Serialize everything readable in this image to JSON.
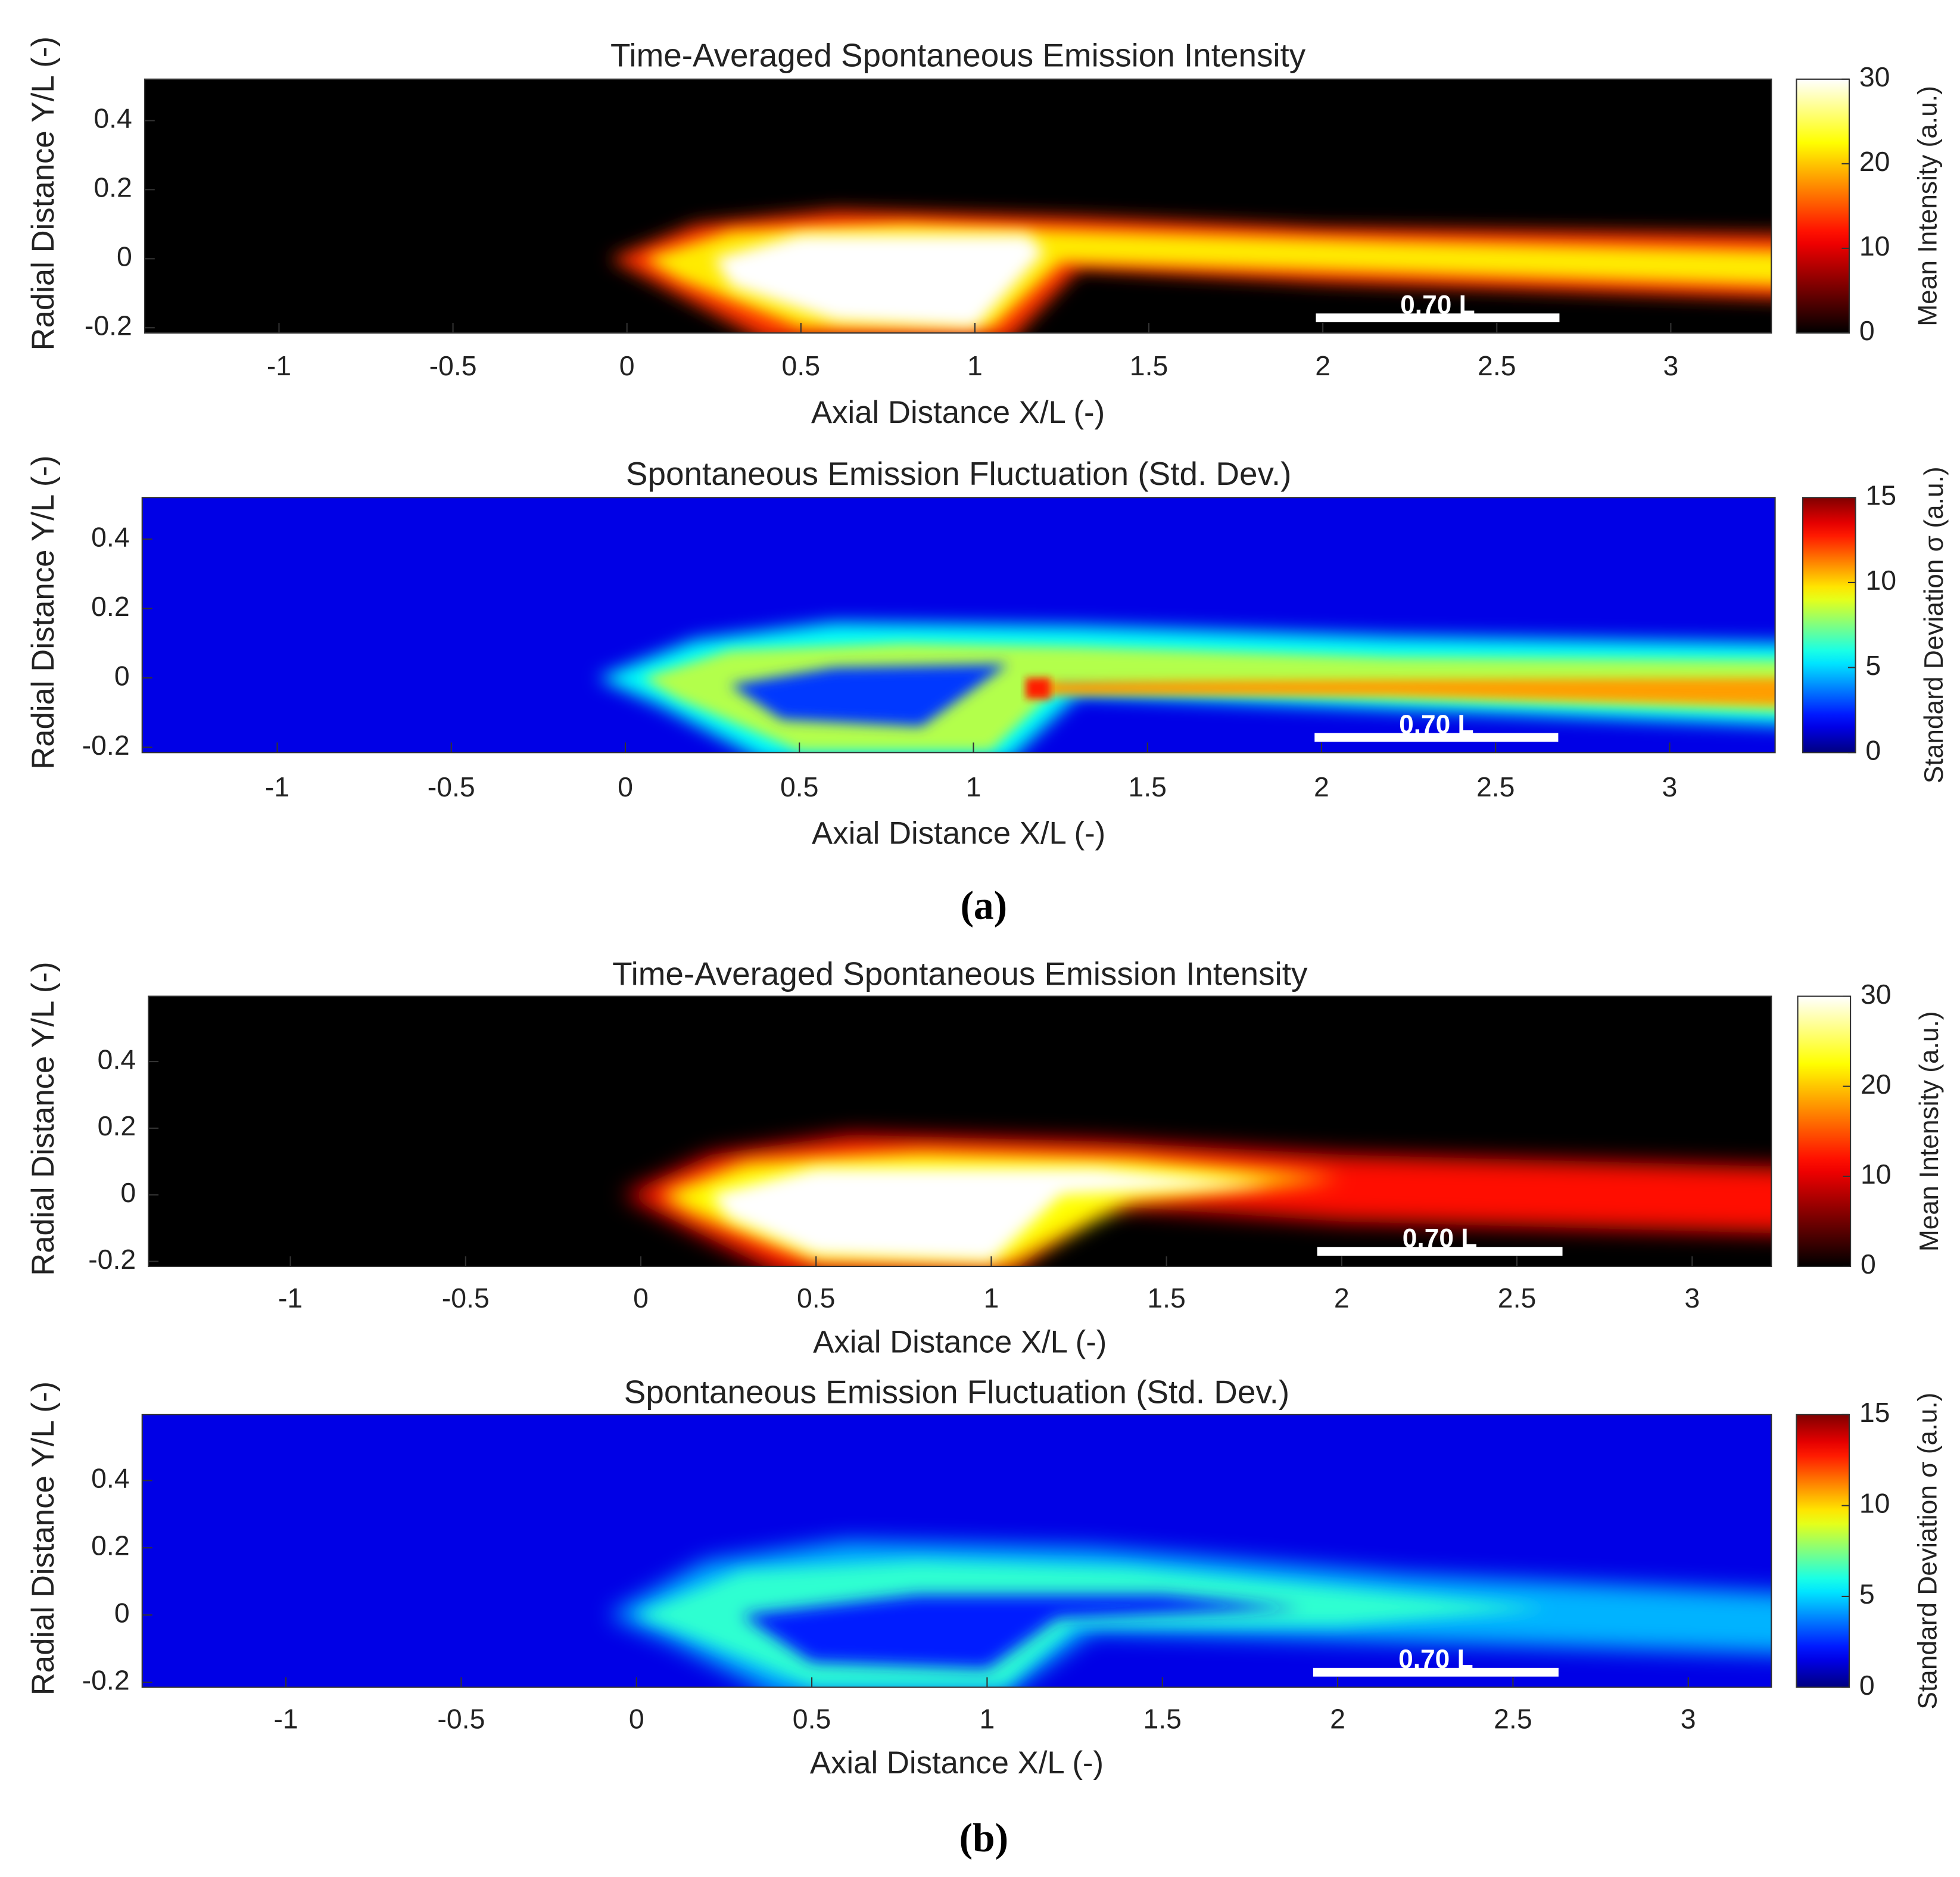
{
  "chart_data": [
    {
      "type": "heatmap",
      "title": "Time-Averaged Spontaneous Emission Intensity",
      "xlabel": "Axial Distance X/L (-)",
      "ylabel": "Radial Distance Y/L (-)",
      "xlim": [
        -1.386,
        3.289
      ],
      "ylim": [
        -0.215,
        0.52
      ],
      "xticks": [
        -1,
        -0.5,
        0,
        0.5,
        1,
        1.5,
        2,
        2.5,
        3
      ],
      "yticks": [
        -0.2,
        0,
        0.2,
        0.4
      ],
      "colormap": "hot",
      "colorbar": {
        "label": "Mean Intensity (a.u.)",
        "lim": [
          0,
          30
        ],
        "ticks": [
          0,
          10,
          20,
          30
        ]
      },
      "scale_bar": {
        "start": 1.98,
        "length": 0.7,
        "label": "0.70 L"
      }
    },
    {
      "type": "heatmap",
      "title": "Spontaneous Emission Fluctuation (Std. Dev.)",
      "xlabel": "Axial Distance X/L (-)",
      "ylabel": "Radial Distance Y/L (-)",
      "xlim": [
        -1.388,
        3.303
      ],
      "ylim": [
        -0.215,
        0.52
      ],
      "xticks": [
        -1,
        -0.5,
        0,
        0.5,
        1,
        1.5,
        2,
        2.5,
        3
      ],
      "yticks": [
        -0.2,
        0,
        0.2,
        0.4
      ],
      "colormap": "jet",
      "colorbar": {
        "label": "Standard Deviation σ (a.u.)",
        "lim": [
          0,
          15
        ],
        "ticks": [
          0,
          5,
          10,
          15
        ]
      },
      "scale_bar": {
        "start": 1.98,
        "length": 0.7,
        "label": "0.70 L"
      }
    },
    {
      "type": "heatmap",
      "title": "Time-Averaged Spontaneous Emission Intensity",
      "xlabel": "Axial Distance X/L (-)",
      "ylabel": "Radial Distance Y/L (-)",
      "xlim": [
        -1.405,
        3.226
      ],
      "ylim": [
        -0.215,
        0.596
      ],
      "xticks": [
        -1,
        -0.5,
        0,
        0.5,
        1,
        1.5,
        2,
        2.5,
        3
      ],
      "yticks": [
        -0.2,
        0,
        0.2,
        0.4
      ],
      "colormap": "hot",
      "colorbar": {
        "label": "Mean Intensity (a.u.)",
        "lim": [
          0,
          30
        ],
        "ticks": [
          0,
          10,
          20,
          30
        ]
      },
      "scale_bar": {
        "start": 1.93,
        "length": 0.7,
        "label": "0.70 L"
      }
    },
    {
      "type": "heatmap",
      "title": "Spontaneous Emission Fluctuation (Std. Dev.)",
      "xlabel": "Axial Distance X/L (-)",
      "ylabel": "Radial Distance Y/L (-)",
      "xlim": [
        -1.41,
        3.237
      ],
      "ylim": [
        -0.215,
        0.596
      ],
      "xticks": [
        -1,
        -0.5,
        0,
        0.5,
        1,
        1.5,
        2,
        2.5,
        3
      ],
      "yticks": [
        -0.2,
        0,
        0.2,
        0.4
      ],
      "colormap": "jet",
      "colorbar": {
        "label": "Standard Deviation σ (a.u.)",
        "lim": [
          0,
          15
        ],
        "ticks": [
          0,
          5,
          10,
          15
        ]
      },
      "scale_bar": {
        "start": 1.93,
        "length": 0.7,
        "label": "0.70 L"
      }
    }
  ],
  "captions": [
    "(a)",
    "(b)"
  ]
}
